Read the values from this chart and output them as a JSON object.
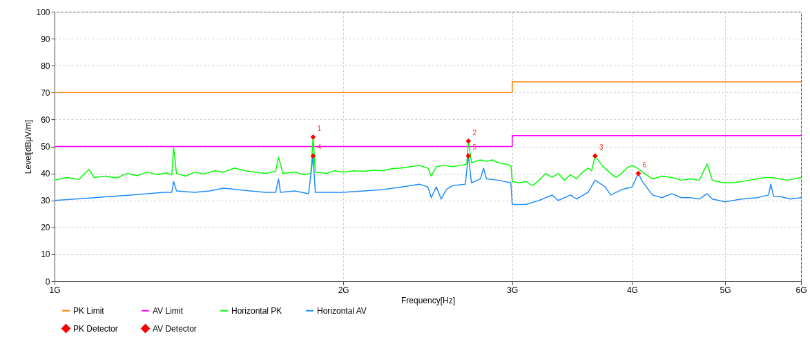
{
  "chart_data": {
    "type": "line",
    "xlabel": "Frequency[Hz]",
    "ylabel": "Level[dBμV/m]",
    "log": "x",
    "grid": true,
    "legend": "bottom",
    "xlim": [
      1,
      6
    ],
    "xticks": [
      {
        "value": 1,
        "label": "1G"
      },
      {
        "value": 2,
        "label": "2G"
      },
      {
        "value": 3,
        "label": "3G"
      },
      {
        "value": 4,
        "label": "4G"
      },
      {
        "value": 5,
        "label": "5G"
      },
      {
        "value": 6,
        "label": "6G"
      }
    ],
    "ylim": [
      0,
      100
    ],
    "yticks": [
      0,
      10,
      20,
      30,
      40,
      50,
      60,
      70,
      80,
      90,
      100
    ],
    "series": [
      {
        "name": "PK Limit",
        "color": "#ff8000",
        "x": [
          1,
          3,
          3,
          6
        ],
        "values": [
          70,
          70,
          74,
          74
        ]
      },
      {
        "name": "AV Limit",
        "color": "#ff00ff",
        "x": [
          1,
          3,
          3,
          6
        ],
        "values": [
          50,
          50,
          54,
          54
        ]
      },
      {
        "name": "Horizontal PK",
        "color": "#00ff00",
        "x": [
          1,
          1.03,
          1.06,
          1.086,
          1.1,
          1.13,
          1.16,
          1.19,
          1.22,
          1.25,
          1.28,
          1.31,
          1.325,
          1.331,
          1.34,
          1.37,
          1.4,
          1.43,
          1.47,
          1.5,
          1.54,
          1.58,
          1.62,
          1.66,
          1.7,
          1.712,
          1.73,
          1.78,
          1.82,
          1.85,
          1.86,
          1.87,
          1.92,
          1.96,
          2,
          2.05,
          2.1,
          2.15,
          2.2,
          2.25,
          2.3,
          2.35,
          2.4,
          2.45,
          2.47,
          2.5,
          2.55,
          2.6,
          2.65,
          2.69,
          2.7,
          2.72,
          2.78,
          2.82,
          2.86,
          2.9,
          2.95,
          2.99,
          3,
          3.05,
          3.1,
          3.15,
          3.2,
          3.25,
          3.3,
          3.35,
          3.4,
          3.45,
          3.5,
          3.55,
          3.6,
          3.63,
          3.66,
          3.72,
          3.8,
          3.85,
          3.9,
          3.95,
          4,
          4.05,
          4.1,
          4.2,
          4.3,
          4.4,
          4.5,
          4.6,
          4.7,
          4.79,
          4.85,
          4.9,
          5,
          5.1,
          5.2,
          5.3,
          5.4,
          5.5,
          5.6,
          5.7,
          5.8,
          5.9,
          6
        ],
        "values": [
          37.5,
          38.5,
          37.8,
          41.5,
          38.5,
          39,
          38.3,
          40,
          39.2,
          40.5,
          39.5,
          40.2,
          39.5,
          49.4,
          40,
          39,
          40.5,
          39.8,
          41,
          40.5,
          42,
          41,
          40.5,
          40,
          40.8,
          46,
          40,
          40.5,
          39.5,
          40,
          53.5,
          40.5,
          40,
          41,
          40.5,
          41,
          40.8,
          41.2,
          41,
          41.8,
          42,
          42.5,
          43,
          42,
          39,
          42.5,
          43,
          42.5,
          43,
          43.5,
          52,
          44,
          45,
          44.5,
          45,
          44,
          43.5,
          43,
          37,
          36.5,
          37,
          35.5,
          37.5,
          40,
          38.5,
          40,
          37.5,
          39.5,
          38,
          40.5,
          42,
          41,
          46.5,
          43,
          40,
          38.5,
          40,
          42,
          43,
          42,
          40.5,
          38,
          39,
          38.5,
          37.5,
          38,
          37.5,
          43.5,
          37.5,
          37,
          36.5,
          36.5,
          37,
          37.5,
          38,
          38.5,
          38.5,
          38,
          37.5,
          38,
          38.5
        ]
      },
      {
        "name": "Horizontal AV",
        "color": "#1e8cff",
        "x": [
          1,
          1.05,
          1.1,
          1.15,
          1.2,
          1.25,
          1.3,
          1.325,
          1.331,
          1.34,
          1.4,
          1.45,
          1.5,
          1.55,
          1.6,
          1.66,
          1.7,
          1.712,
          1.72,
          1.78,
          1.84,
          1.86,
          1.87,
          1.92,
          2,
          2.1,
          2.2,
          2.3,
          2.4,
          2.45,
          2.47,
          2.5,
          2.53,
          2.56,
          2.6,
          2.68,
          2.7,
          2.72,
          2.78,
          2.8,
          2.82,
          2.9,
          2.99,
          3,
          3.1,
          3.2,
          3.3,
          3.35,
          3.45,
          3.5,
          3.6,
          3.66,
          3.75,
          3.8,
          3.9,
          4,
          4.06,
          4.1,
          4.2,
          4.3,
          4.4,
          4.5,
          4.6,
          4.7,
          4.79,
          4.85,
          5,
          5.1,
          5.2,
          5.4,
          5.55,
          5.58,
          5.62,
          5.7,
          5.85,
          6
        ],
        "values": [
          30,
          30.5,
          31,
          31.5,
          32,
          32.5,
          33,
          33,
          37,
          33.5,
          33,
          33.5,
          34.5,
          34,
          33.5,
          33,
          33,
          38,
          33,
          33.5,
          32.5,
          46.5,
          33,
          33,
          33,
          33.5,
          34,
          35,
          36,
          35,
          31,
          35,
          30.5,
          34,
          35.5,
          36,
          46.5,
          36.5,
          38,
          42,
          38,
          37.5,
          36.5,
          28.5,
          28.5,
          30,
          32,
          30,
          32,
          30.5,
          33,
          37.5,
          35,
          32,
          34,
          35,
          40,
          37,
          32,
          31,
          32.5,
          31,
          31,
          30.5,
          32.5,
          30.5,
          29.5,
          30,
          30.5,
          31,
          32,
          36,
          31.5,
          31.5,
          30.5,
          31
        ]
      },
      {
        "name": "PK Detector",
        "type": "scatter",
        "color": "#ff0000",
        "marker": "diamond",
        "x": [
          1.86,
          2.7,
          3.66
        ],
        "values": [
          53.5,
          52,
          46.5
        ]
      },
      {
        "name": "AV Detector",
        "type": "scatter",
        "color": "#ff0000",
        "marker": "diamond",
        "x": [
          1.86,
          2.7,
          4.06
        ],
        "values": [
          46.5,
          46.5,
          40
        ]
      }
    ],
    "annotations": [
      {
        "text": "1",
        "x": 1.86,
        "y": 53.5
      },
      {
        "text": "2",
        "x": 2.7,
        "y": 52
      },
      {
        "text": "3",
        "x": 3.66,
        "y": 46.5
      },
      {
        "text": "4",
        "x": 1.86,
        "y": 46.5
      },
      {
        "text": "5",
        "x": 2.7,
        "y": 46.5
      },
      {
        "text": "6",
        "x": 4.06,
        "y": 40
      }
    ]
  }
}
